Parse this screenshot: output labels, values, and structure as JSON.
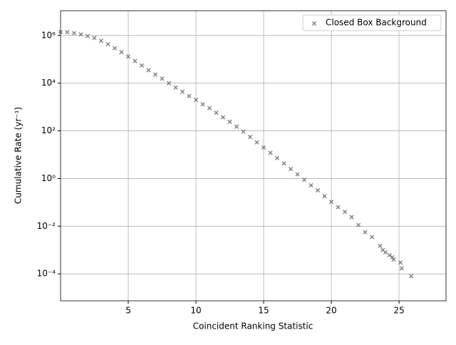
{
  "chart_data": {
    "type": "scatter",
    "xlabel": "Coincident Ranking Statistic",
    "ylabel": "Cumulative Rate (yr⁻¹)",
    "xlim": [
      0,
      28.47
    ],
    "xticks": [
      5,
      10,
      15,
      20,
      25
    ],
    "ylim": [
      7.4e-06,
      11000000.0
    ],
    "log_y": true,
    "yticks": [
      {
        "value": 0.0001,
        "label": "10⁻⁴"
      },
      {
        "value": 0.01,
        "label": "10⁻²"
      },
      {
        "value": 1,
        "label": "10⁰"
      },
      {
        "value": 100,
        "label": "10²"
      },
      {
        "value": 10000,
        "label": "10⁴"
      },
      {
        "value": 1000000,
        "label": "10⁶"
      }
    ],
    "grid": true,
    "legend": "upper right",
    "series": [
      {
        "name": "Closed Box Background",
        "color": "#808080",
        "marker": "x",
        "x": [
          0,
          0.5,
          1,
          1.5,
          2,
          2.5,
          3,
          3.5,
          4,
          4.5,
          5,
          5.5,
          6,
          6.5,
          7,
          7.5,
          8,
          8.5,
          9,
          9.5,
          10,
          10.5,
          11,
          11.5,
          12,
          12.5,
          13,
          13.5,
          14,
          14.5,
          15,
          15.5,
          16,
          16.5,
          17,
          17.5,
          18,
          18.5,
          19,
          19.5,
          20,
          20.5,
          21,
          21.5,
          22,
          22.5,
          23,
          23.6,
          23.8,
          24,
          24.3,
          24.5,
          24.6,
          25.1,
          25.2,
          25.9
        ],
        "values": [
          1400000.0,
          1380000.0,
          1260000.0,
          1120000.0,
          950000.0,
          790000.0,
          600000.0,
          430000.0,
          295000.0,
          200000.0,
          132000.0,
          85000.0,
          55000.0,
          35000.0,
          23000.0,
          15500.0,
          10000.0,
          6600.0,
          4400.0,
          2900.0,
          2000.0,
          1300.0,
          890,
          575,
          370,
          240,
          150,
          93,
          56,
          33,
          20,
          12,
          7.2,
          4.3,
          2.5,
          1.5,
          0.89,
          0.52,
          0.32,
          0.18,
          0.105,
          0.063,
          0.04,
          0.024,
          0.0112,
          0.0056,
          0.0035,
          0.0015,
          0.001,
          0.0008,
          0.0006,
          0.0005,
          0.0004,
          0.0003,
          0.00017,
          8e-05
        ]
      }
    ]
  }
}
